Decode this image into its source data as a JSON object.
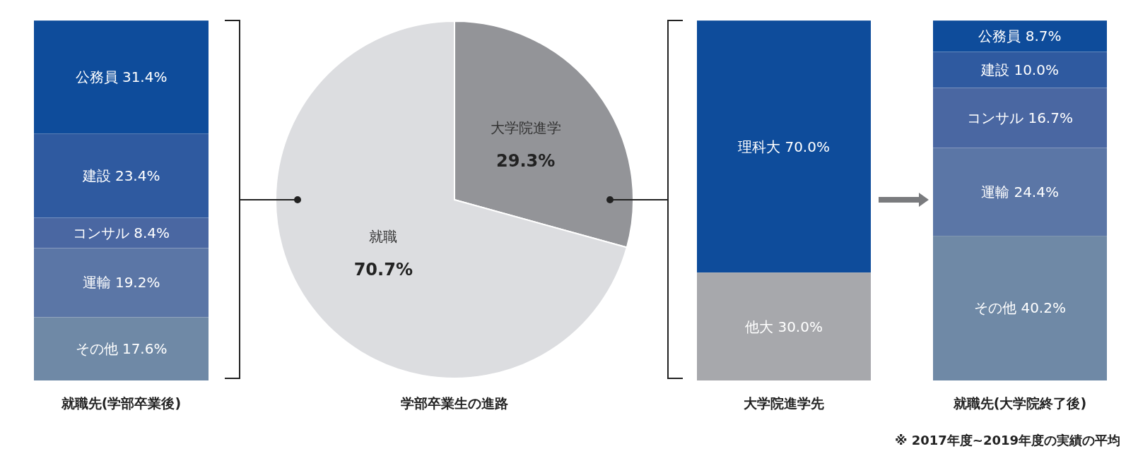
{
  "chart_data": [
    {
      "type": "bar",
      "stacked": true,
      "categories": [
        null
      ],
      "xlabel": "就職先(学部卒業後)",
      "series": [
        {
          "color": "#6f89a6",
          "values": [
            17.6
          ],
          "value_labels": [
            "その他 17.6%"
          ]
        },
        {
          "color": "#5b76a6",
          "values": [
            19.2
          ],
          "value_labels": [
            "運輸 19.2%"
          ]
        },
        {
          "color": "#4a67a2",
          "values": [
            8.4
          ],
          "value_labels": [
            "コンサル 8.4%"
          ]
        },
        {
          "color": "#2f5aa0",
          "values": [
            23.4
          ],
          "value_labels": [
            "建設 23.4%"
          ]
        },
        {
          "color": "#0e4c9b",
          "values": [
            31.4
          ],
          "value_labels": [
            "公務員 31.4%"
          ]
        }
      ]
    },
    {
      "type": "pie",
      "categories": [
        "就職",
        "大学院進学"
      ],
      "values": [
        70.7,
        29.3
      ],
      "colors": [
        "#dcdde0",
        "#939498"
      ],
      "value_labels": [
        "70.7%",
        "29.3%"
      ],
      "xlabel": "学部卒業生の進路"
    },
    {
      "type": "bar",
      "stacked": true,
      "categories": [
        null
      ],
      "xlabel": "大学院進学先",
      "series": [
        {
          "color": "#a7a8ac",
          "values": [
            30.0
          ],
          "value_labels": [
            "他大 30.0%"
          ]
        },
        {
          "color": "#0e4c9b",
          "values": [
            70.0
          ],
          "value_labels": [
            "理科大 70.0%"
          ]
        }
      ]
    },
    {
      "type": "bar",
      "stacked": true,
      "categories": [
        null
      ],
      "xlabel": "就職先(大学院終了後)",
      "annotations": [
        "※ 2017年度~2019年度の実績の平均"
      ],
      "series": [
        {
          "color": "#6f89a6",
          "values": [
            40.2
          ],
          "value_labels": [
            "その他 40.2%"
          ]
        },
        {
          "color": "#5b76a6",
          "values": [
            24.4
          ],
          "value_labels": [
            "運輸 24.4%"
          ]
        },
        {
          "color": "#4a67a2",
          "values": [
            16.7
          ],
          "value_labels": [
            "コンサル 16.7%"
          ]
        },
        {
          "color": "#2f5aa0",
          "values": [
            10.0
          ],
          "value_labels": [
            "建設 10.0%"
          ]
        },
        {
          "color": "#0e4c9b",
          "values": [
            8.7
          ],
          "value_labels": [
            "公務員 8.7%"
          ]
        }
      ]
    }
  ]
}
